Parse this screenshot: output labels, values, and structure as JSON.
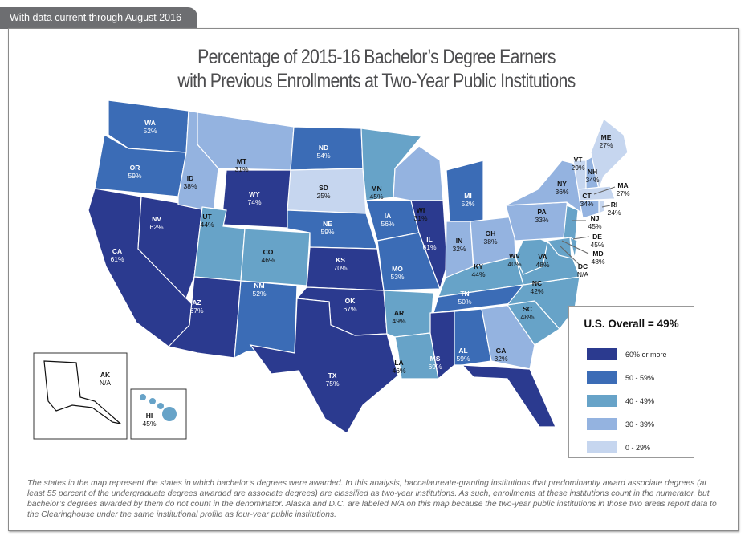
{
  "banner": "With data current through August 2016",
  "title_line1": "Percentage of 2015-16 Bachelor’s Degree Earners",
  "title_line2": "with Previous Enrollments at Two-Year Public Institutions",
  "legend": {
    "overall": "U.S. Overall = 49%",
    "bins": [
      {
        "label": "60% or more",
        "color": "#2b3a8f"
      },
      {
        "label": "50 - 59%",
        "color": "#3b6cb6"
      },
      {
        "label": "40 - 49%",
        "color": "#67a3c8"
      },
      {
        "label": "30 - 39%",
        "color": "#94b3e0"
      },
      {
        "label": "0 - 29%",
        "color": "#c6d6ef"
      }
    ],
    "na_color": "#94b3e0"
  },
  "states": [
    {
      "abbr": "WA",
      "value": "52%",
      "bin": 1
    },
    {
      "abbr": "OR",
      "value": "59%",
      "bin": 1
    },
    {
      "abbr": "CA",
      "value": "61%",
      "bin": 0
    },
    {
      "abbr": "NV",
      "value": "62%",
      "bin": 0
    },
    {
      "abbr": "ID",
      "value": "38%",
      "bin": 3
    },
    {
      "abbr": "MT",
      "value": "31%",
      "bin": 3
    },
    {
      "abbr": "WY",
      "value": "74%",
      "bin": 0
    },
    {
      "abbr": "UT",
      "value": "44%",
      "bin": 2
    },
    {
      "abbr": "AZ",
      "value": "67%",
      "bin": 0
    },
    {
      "abbr": "CO",
      "value": "46%",
      "bin": 2
    },
    {
      "abbr": "NM",
      "value": "52%",
      "bin": 1
    },
    {
      "abbr": "ND",
      "value": "54%",
      "bin": 1
    },
    {
      "abbr": "SD",
      "value": "25%",
      "bin": 4
    },
    {
      "abbr": "NE",
      "value": "59%",
      "bin": 1
    },
    {
      "abbr": "KS",
      "value": "70%",
      "bin": 0
    },
    {
      "abbr": "OK",
      "value": "67%",
      "bin": 0
    },
    {
      "abbr": "TX",
      "value": "75%",
      "bin": 0
    },
    {
      "abbr": "MN",
      "value": "45%",
      "bin": 2
    },
    {
      "abbr": "IA",
      "value": "56%",
      "bin": 1
    },
    {
      "abbr": "MO",
      "value": "53%",
      "bin": 1
    },
    {
      "abbr": "AR",
      "value": "49%",
      "bin": 2
    },
    {
      "abbr": "LA",
      "value": "46%",
      "bin": 2
    },
    {
      "abbr": "WI",
      "value": "31%",
      "bin": 3
    },
    {
      "abbr": "IL",
      "value": "61%",
      "bin": 0
    },
    {
      "abbr": "MI",
      "value": "52%",
      "bin": 1
    },
    {
      "abbr": "IN",
      "value": "32%",
      "bin": 3
    },
    {
      "abbr": "OH",
      "value": "38%",
      "bin": 3
    },
    {
      "abbr": "KY",
      "value": "44%",
      "bin": 2
    },
    {
      "abbr": "TN",
      "value": "50%",
      "bin": 1
    },
    {
      "abbr": "MS",
      "value": "69%",
      "bin": 0
    },
    {
      "abbr": "AL",
      "value": "59%",
      "bin": 1
    },
    {
      "abbr": "GA",
      "value": "32%",
      "bin": 3
    },
    {
      "abbr": "FL",
      "value": "64%",
      "bin": 0
    },
    {
      "abbr": "SC",
      "value": "48%",
      "bin": 2
    },
    {
      "abbr": "NC",
      "value": "42%",
      "bin": 2
    },
    {
      "abbr": "VA",
      "value": "48%",
      "bin": 2
    },
    {
      "abbr": "WV",
      "value": "40%",
      "bin": 2
    },
    {
      "abbr": "PA",
      "value": "33%",
      "bin": 3
    },
    {
      "abbr": "NY",
      "value": "36%",
      "bin": 3
    },
    {
      "abbr": "NJ",
      "value": "45%",
      "bin": 2
    },
    {
      "abbr": "DE",
      "value": "45%",
      "bin": 2
    },
    {
      "abbr": "MD",
      "value": "48%",
      "bin": 2
    },
    {
      "abbr": "DC",
      "value": "N/A",
      "bin": null
    },
    {
      "abbr": "VT",
      "value": "29%",
      "bin": 4
    },
    {
      "abbr": "NH",
      "value": "34%",
      "bin": 3
    },
    {
      "abbr": "ME",
      "value": "27%",
      "bin": 4
    },
    {
      "abbr": "MA",
      "value": "27%",
      "bin": 4
    },
    {
      "abbr": "RI",
      "value": "24%",
      "bin": 4
    },
    {
      "abbr": "CT",
      "value": "34%",
      "bin": 3
    },
    {
      "abbr": "AK",
      "value": "N/A",
      "bin": null
    },
    {
      "abbr": "HI",
      "value": "45%",
      "bin": 2
    }
  ],
  "footnote": "The states in the map represent the states in which bachelor’s degrees were awarded. In this analysis, baccalaureate-granting institutions that predominantly award associate degrees (at least 55 percent of the undergraduate degrees awarded are associate degrees) are classified as two-year institutions. As such, enrollments at these institutions count in the numerator, but bachelor’s degrees awarded by them do not count in the denominator. Alaska and D.C. are labeled N/A on this map because the two-year public institutions in those two areas report data to the Clearinghouse under the same institutional profile as four-year public institutions."
}
